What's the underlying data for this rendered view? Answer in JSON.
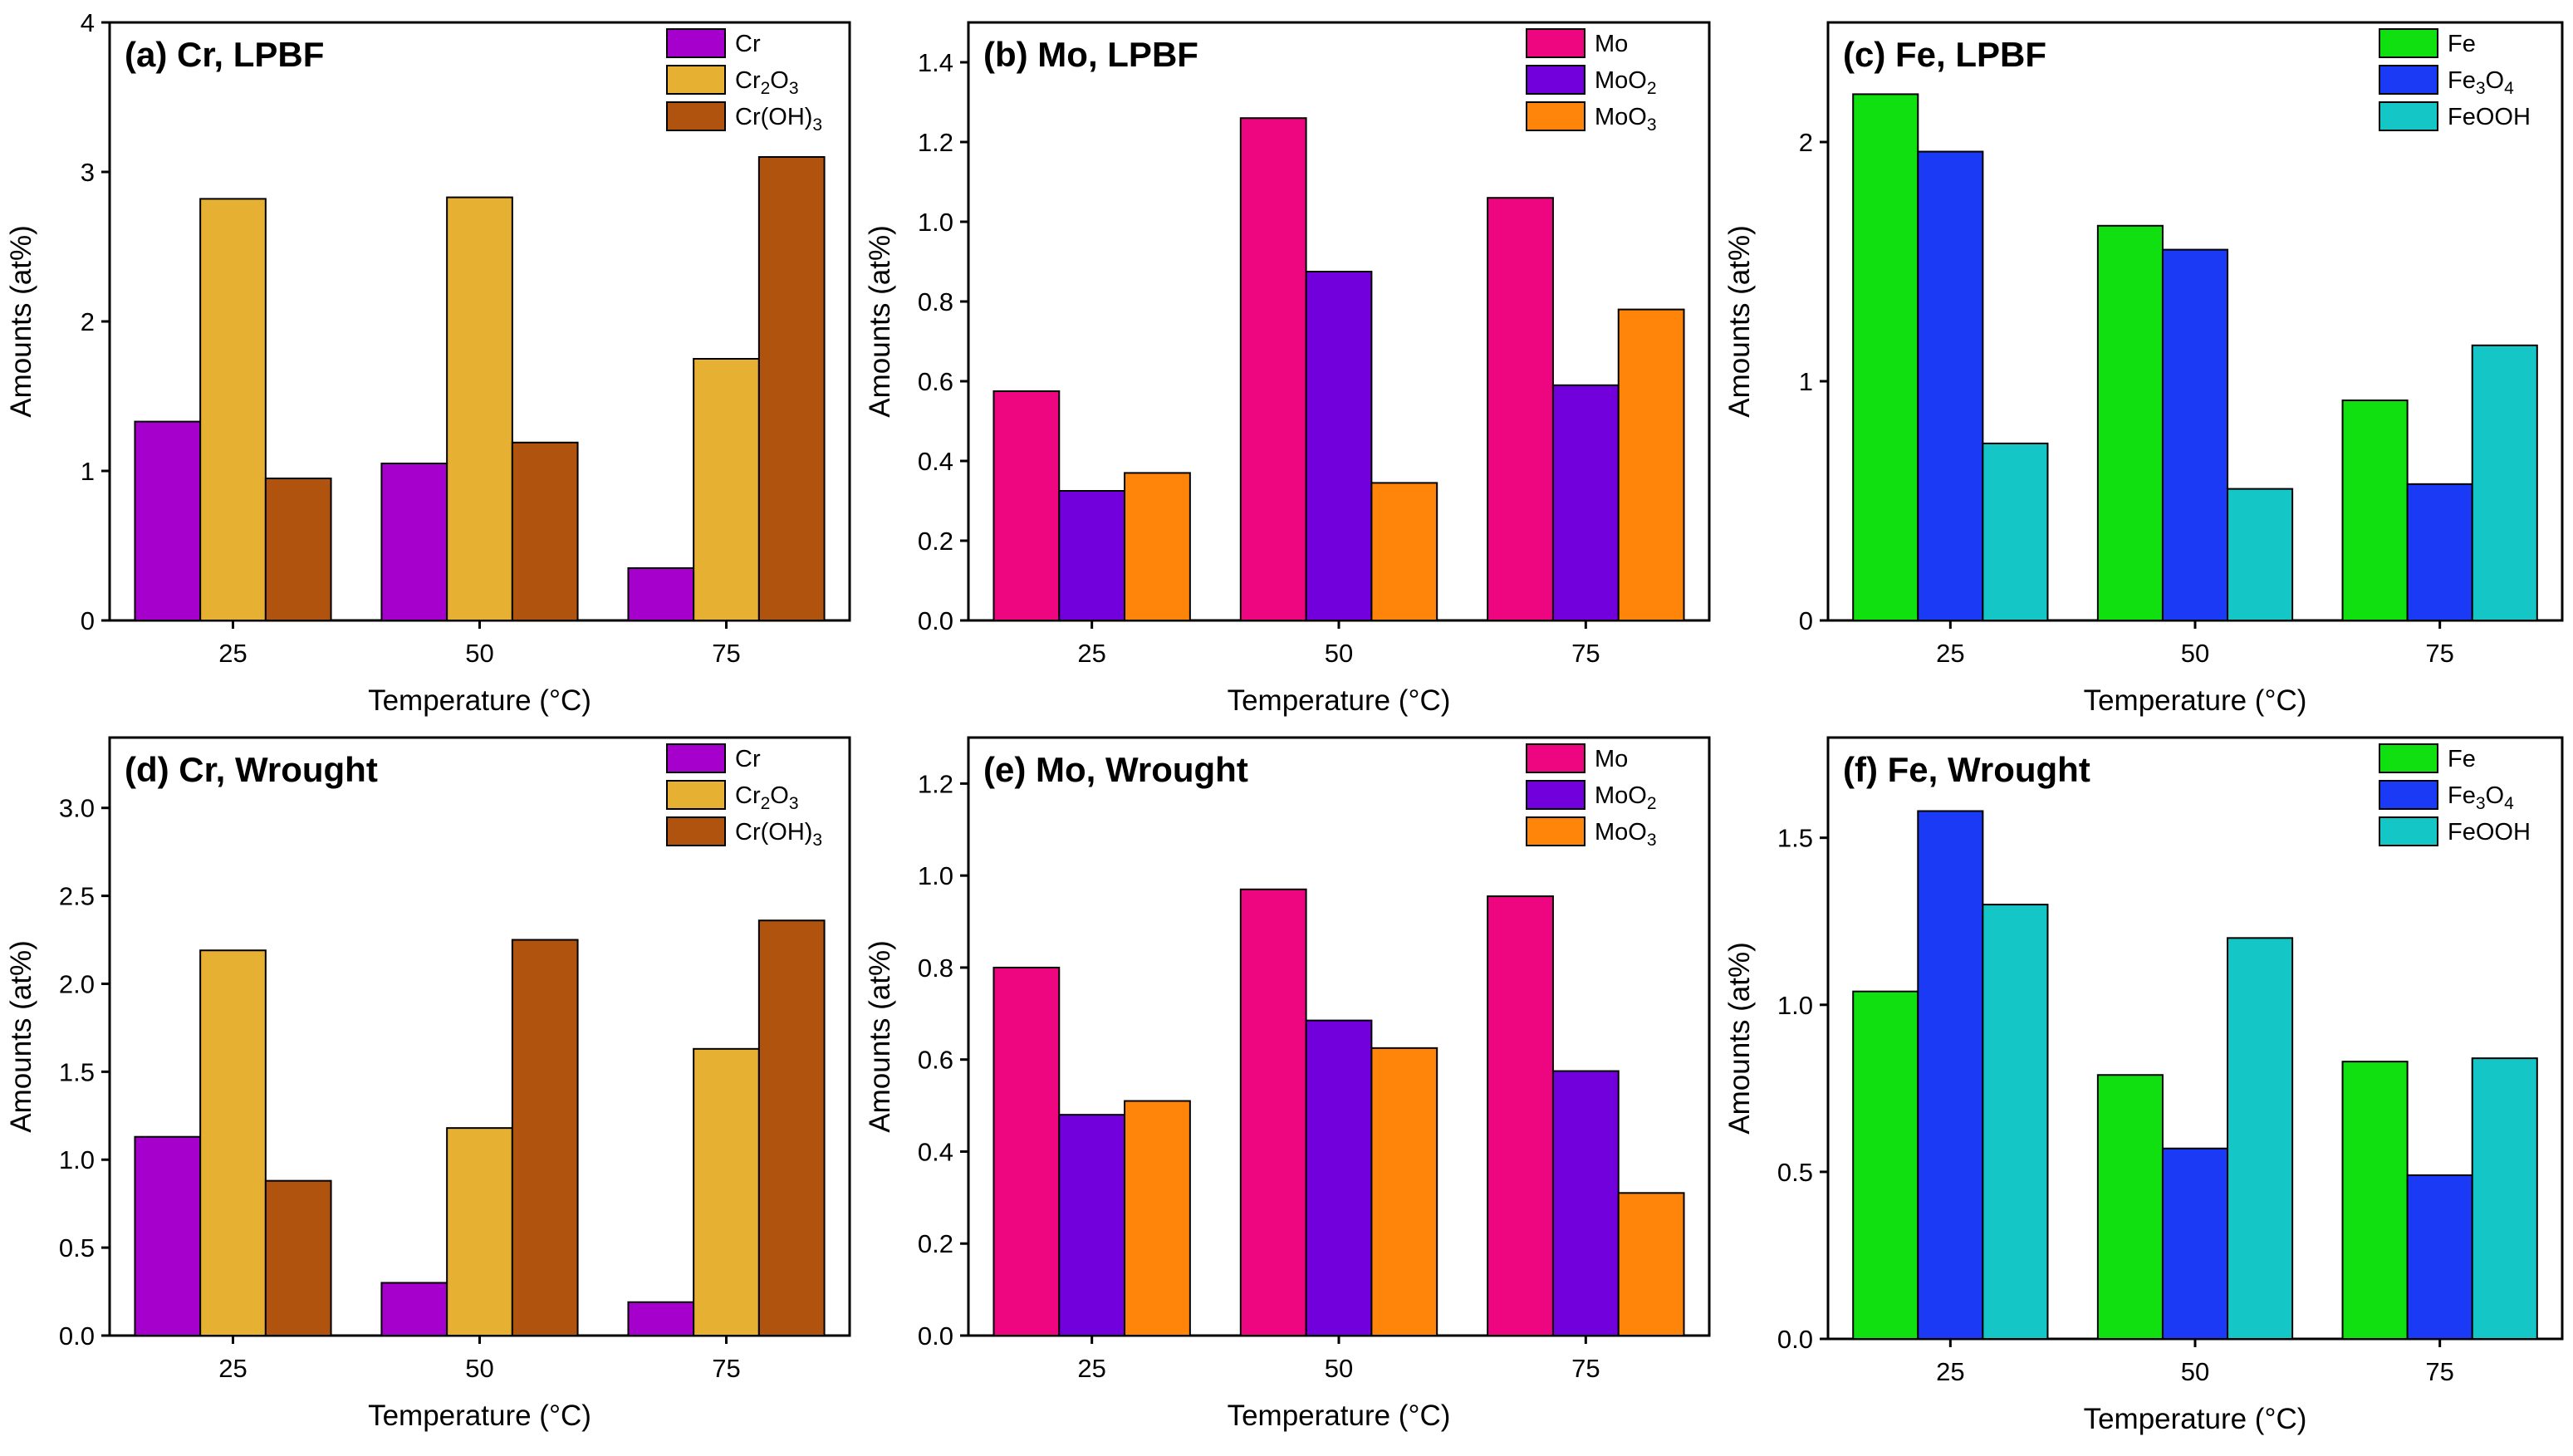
{
  "colors": {
    "Cr": "#a600cc",
    "Cr2O3": "#e6b032",
    "CrOH3": "#b0530f",
    "Mo": "#ee0680",
    "MoO2": "#7200dd",
    "MoO3": "#ff850a",
    "Fe": "#10e010",
    "Fe3O4": "#1a3af5",
    "FeOOH": "#15c6c6"
  },
  "chart_data": [
    {
      "type": "bar",
      "title": "(a) Cr, LPBF",
      "xlabel": "Temperature (°C)",
      "ylabel": "Amounts (at%)",
      "categories": [
        "25",
        "50",
        "75"
      ],
      "ylim": [
        0,
        4
      ],
      "yticks": [
        "0",
        "1",
        "2",
        "3",
        "4"
      ],
      "legend_position": "top-right",
      "series": [
        {
          "name": "Cr",
          "label": [
            "Cr"
          ],
          "color_key": "Cr",
          "values": [
            1.33,
            1.05,
            0.35
          ]
        },
        {
          "name": "Cr2O3",
          "label": [
            "Cr",
            "2",
            "O",
            "3"
          ],
          "color_key": "Cr2O3",
          "values": [
            2.82,
            2.83,
            1.75
          ]
        },
        {
          "name": "Cr(OH)3",
          "label": [
            "Cr(OH)",
            "3"
          ],
          "color_key": "CrOH3",
          "values": [
            0.95,
            1.19,
            3.1
          ]
        }
      ]
    },
    {
      "type": "bar",
      "title": "(b) Mo, LPBF",
      "xlabel": "Temperature (°C)",
      "ylabel": "Amounts (at%)",
      "categories": [
        "25",
        "50",
        "75"
      ],
      "ylim": [
        0,
        1.5
      ],
      "yticks": [
        "0.0",
        "0.2",
        "0.4",
        "0.6",
        "0.8",
        "1.0",
        "1.2",
        "1.4"
      ],
      "legend_position": "top-right",
      "series": [
        {
          "name": "Mo",
          "label": [
            "Mo"
          ],
          "color_key": "Mo",
          "values": [
            0.575,
            1.26,
            1.06
          ]
        },
        {
          "name": "MoO2",
          "label": [
            "MoO",
            "2"
          ],
          "color_key": "MoO2",
          "values": [
            0.325,
            0.875,
            0.59
          ]
        },
        {
          "name": "MoO3",
          "label": [
            "MoO",
            "3"
          ],
          "color_key": "MoO3",
          "values": [
            0.37,
            0.345,
            0.78
          ]
        }
      ]
    },
    {
      "type": "bar",
      "title": "(c) Fe, LPBF",
      "xlabel": "Temperature (°C)",
      "ylabel": "Amounts (at%)",
      "categories": [
        "25",
        "50",
        "75"
      ],
      "ylim": [
        0,
        2.5
      ],
      "yticks": [
        "0",
        "1",
        "2"
      ],
      "legend_position": "top-right",
      "series": [
        {
          "name": "Fe",
          "label": [
            "Fe"
          ],
          "color_key": "Fe",
          "values": [
            2.2,
            1.65,
            0.92
          ]
        },
        {
          "name": "Fe3O4",
          "label": [
            "Fe",
            "3",
            "O",
            "4"
          ],
          "color_key": "Fe3O4",
          "values": [
            1.96,
            1.55,
            0.57
          ]
        },
        {
          "name": "FeOOH",
          "label": [
            "FeOOH"
          ],
          "color_key": "FeOOH",
          "values": [
            0.74,
            0.55,
            1.15
          ]
        }
      ]
    },
    {
      "type": "bar",
      "title": "(d) Cr, Wrought",
      "xlabel": "Temperature (°C)",
      "ylabel": "Amounts (at%)",
      "categories": [
        "25",
        "50",
        "75"
      ],
      "ylim": [
        0,
        3.4
      ],
      "yticks": [
        "0.0",
        "0.5",
        "1.0",
        "1.5",
        "2.0",
        "2.5",
        "3.0"
      ],
      "legend_position": "top-right",
      "series": [
        {
          "name": "Cr",
          "label": [
            "Cr"
          ],
          "color_key": "Cr",
          "values": [
            1.13,
            0.3,
            0.19
          ]
        },
        {
          "name": "Cr2O3",
          "label": [
            "Cr",
            "2",
            "O",
            "3"
          ],
          "color_key": "Cr2O3",
          "values": [
            2.19,
            1.18,
            1.63
          ]
        },
        {
          "name": "Cr(OH)3",
          "label": [
            "Cr(OH)",
            "3"
          ],
          "color_key": "CrOH3",
          "values": [
            0.88,
            2.25,
            2.36
          ]
        }
      ]
    },
    {
      "type": "bar",
      "title": "(e) Mo, Wrought",
      "xlabel": "Temperature (°C)",
      "ylabel": "Amounts (at%)",
      "categories": [
        "25",
        "50",
        "75"
      ],
      "ylim": [
        0,
        1.3
      ],
      "yticks": [
        "0.0",
        "0.2",
        "0.4",
        "0.6",
        "0.8",
        "1.0",
        "1.2"
      ],
      "legend_position": "top-right",
      "series": [
        {
          "name": "Mo",
          "label": [
            "Mo"
          ],
          "color_key": "Mo",
          "values": [
            0.8,
            0.97,
            0.955
          ]
        },
        {
          "name": "MoO2",
          "label": [
            "MoO",
            "2"
          ],
          "color_key": "MoO2",
          "values": [
            0.48,
            0.685,
            0.575
          ]
        },
        {
          "name": "MoO3",
          "label": [
            "MoO",
            "3"
          ],
          "color_key": "MoO3",
          "values": [
            0.51,
            0.625,
            0.31
          ]
        }
      ]
    },
    {
      "type": "bar",
      "title": "(f) Fe, Wrought",
      "xlabel": "Temperature (°C)",
      "ylabel": "Amounts (at%)",
      "categories": [
        "25",
        "50",
        "75"
      ],
      "ylim": [
        0,
        1.8
      ],
      "yticks": [
        "0.0",
        "0.5",
        "1.0",
        "1.5"
      ],
      "legend_position": "top-right",
      "series": [
        {
          "name": "Fe",
          "label": [
            "Fe"
          ],
          "color_key": "Fe",
          "values": [
            1.04,
            0.79,
            0.83
          ]
        },
        {
          "name": "Fe3O4",
          "label": [
            "Fe",
            "3",
            "O",
            "4"
          ],
          "color_key": "Fe3O4",
          "values": [
            1.58,
            0.57,
            0.49
          ]
        },
        {
          "name": "FeOOH",
          "label": [
            "FeOOH"
          ],
          "color_key": "FeOOH",
          "values": [
            1.3,
            1.2,
            0.84
          ]
        }
      ]
    }
  ]
}
